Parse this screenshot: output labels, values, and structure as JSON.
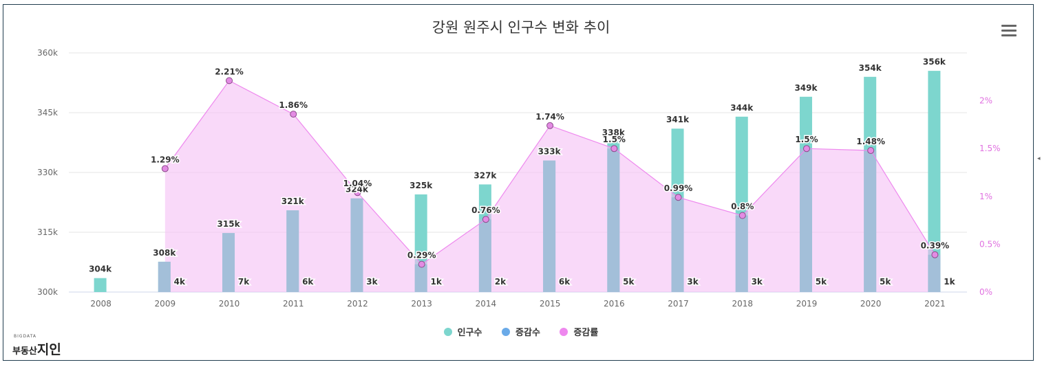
{
  "title": "강원 원주시 인구수 변화 추이",
  "menu": {
    "icon": "hamburger-menu-icon"
  },
  "logo": {
    "small_text": "BIGDATA",
    "prefix": "부동산",
    "main": "지인"
  },
  "legend": [
    {
      "label": "인구수",
      "color": "#7dd6ce"
    },
    {
      "label": "증감수",
      "color": "#6aaae8"
    },
    {
      "label": "증감률",
      "color": "#ee88ee"
    }
  ],
  "chart_data": {
    "type": "bar",
    "title": "강원 원주시 인구수 변화 추이",
    "categories": [
      "2008",
      "2009",
      "2010",
      "2011",
      "2012",
      "2013",
      "2014",
      "2015",
      "2016",
      "2017",
      "2018",
      "2019",
      "2020",
      "2021"
    ],
    "series": [
      {
        "name": "인구수",
        "type": "bar",
        "axis": "left",
        "color": "#7dd6ce",
        "values": [
          303500,
          307600,
          314800,
          320500,
          323500,
          324500,
          327000,
          333000,
          337800,
          341000,
          344000,
          349000,
          354000,
          355500
        ],
        "labels": [
          "304k",
          "308k",
          "315k",
          "321k",
          "324k",
          "325k",
          "327k",
          "333k",
          "338k",
          "341k",
          "344k",
          "349k",
          "354k",
          "356k"
        ]
      },
      {
        "name": "증감수",
        "type": "bar",
        "axis": "left",
        "color": "#a0c0d8",
        "values": [
          null,
          4000,
          7000,
          6000,
          3000,
          1000,
          2000,
          6000,
          5000,
          3000,
          3000,
          5000,
          5000,
          1000
        ],
        "labels": [
          "",
          "4k",
          "7k",
          "6k",
          "3k",
          "1k",
          "2k",
          "6k",
          "5k",
          "3k",
          "3k",
          "5k",
          "5k",
          "1k"
        ]
      },
      {
        "name": "증감률",
        "type": "area",
        "axis": "right",
        "color": "#ee88ee",
        "values": [
          null,
          1.29,
          2.21,
          1.86,
          1.04,
          0.29,
          0.76,
          1.74,
          1.5,
          0.99,
          0.8,
          1.5,
          1.48,
          0.39
        ],
        "labels": [
          "",
          "1.29%",
          "2.21%",
          "1.86%",
          "1.04%",
          "0.29%",
          "0.76%",
          "1.74%",
          "1.5%",
          "0.99%",
          "0.8%",
          "1.5%",
          "1.48%",
          "0.39%"
        ]
      }
    ],
    "y_left": {
      "min": 300000,
      "max": 360000,
      "ticks": [
        "300k",
        "315k",
        "330k",
        "345k",
        "360k"
      ],
      "tick_values": [
        300000,
        315000,
        330000,
        345000,
        360000
      ]
    },
    "y_right": {
      "min": 0,
      "max": 2.5,
      "ticks": [
        "0%",
        "0.5%",
        "1%",
        "1.5%",
        "2%"
      ],
      "tick_values": [
        0,
        0.5,
        1,
        1.5,
        2
      ]
    },
    "grid": true,
    "legend_position": "bottom-center"
  }
}
